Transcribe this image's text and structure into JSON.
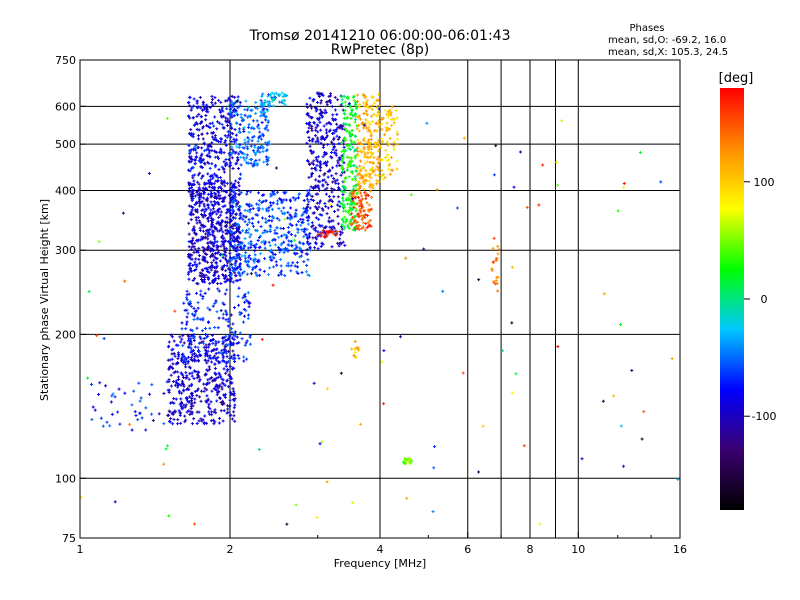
{
  "chart_data": {
    "type": "scatter",
    "title": "Tromsø 20141210 06:00:00-06:01:43",
    "subtitle": "RwPretec (8p)",
    "xlabel": "Frequency [MHz]",
    "ylabel": "Stationary phase Virtual Height [km]",
    "x_scale": "log",
    "y_scale": "log",
    "xlim": [
      1,
      16
    ],
    "ylim": [
      75,
      750
    ],
    "x_ticks": [
      1,
      2,
      4,
      6,
      8,
      10,
      16
    ],
    "x_tick_labels": [
      "1",
      "2",
      "4",
      "6",
      "8",
      "10",
      "16"
    ],
    "x_gridlines": [
      2,
      4,
      6,
      7,
      8,
      9,
      10
    ],
    "y_ticks": [
      75,
      100,
      200,
      300,
      400,
      500,
      600,
      750
    ],
    "y_tick_labels": [
      "75",
      "100",
      "200",
      "300",
      "400",
      "500",
      "600",
      "750"
    ],
    "y_gridlines": [
      100,
      200,
      300,
      400,
      500,
      600
    ],
    "grid": true,
    "phase_info": {
      "title": "Phases",
      "line1": "mean, sd,O: -69.2, 16.0",
      "line2": "mean, sd,X: 105.3, 24.5"
    },
    "colorbar": {
      "label": "[deg]",
      "range": [
        -180,
        180
      ],
      "ticks": [
        100,
        0,
        -100
      ],
      "tick_labels": [
        "100",
        "0",
        "-100"
      ],
      "colors": [
        "#000000",
        "#3a0070",
        "#0000ff",
        "#00c8ff",
        "#00ff00",
        "#ffff00",
        "#ff8c00",
        "#ff0000"
      ]
    },
    "clusters": [
      {
        "x": [
          1.5,
          2.05
        ],
        "y": [
          130,
          200
        ],
        "phase": -95,
        "density": 450
      },
      {
        "x": [
          1.6,
          2.2
        ],
        "y": [
          175,
          250
        ],
        "phase": -70,
        "density": 180
      },
      {
        "x": [
          1.65,
          2.1
        ],
        "y": [
          255,
          420
        ],
        "phase": -95,
        "density": 650
      },
      {
        "x": [
          1.65,
          2.1
        ],
        "y": [
          420,
          630
        ],
        "phase": -85,
        "density": 300
      },
      {
        "x": [
          2.0,
          2.9
        ],
        "y": [
          265,
          400
        ],
        "phase": -60,
        "density": 420
      },
      {
        "x": [
          2.0,
          2.4
        ],
        "y": [
          450,
          620
        ],
        "phase": -50,
        "density": 180
      },
      {
        "x": [
          2.3,
          2.6
        ],
        "y": [
          600,
          640
        ],
        "phase": -30,
        "density": 45
      },
      {
        "x": [
          2.85,
          3.4
        ],
        "y": [
          300,
          640
        ],
        "phase": -95,
        "density": 380
      },
      {
        "x": [
          3.35,
          3.6
        ],
        "y": [
          330,
          630
        ],
        "phase": 20,
        "density": 220
      },
      {
        "x": [
          3.6,
          4.0
        ],
        "y": [
          400,
          640
        ],
        "phase": 110,
        "density": 200
      },
      {
        "x": [
          3.5,
          3.85
        ],
        "y": [
          330,
          400
        ],
        "phase": 150,
        "density": 90
      },
      {
        "x": [
          4.0,
          4.35
        ],
        "y": [
          420,
          600
        ],
        "phase": 100,
        "density": 70
      },
      {
        "x": [
          3.0,
          3.3
        ],
        "y": [
          320,
          330
        ],
        "phase": 170,
        "density": 25
      },
      {
        "x": [
          1.05,
          1.5
        ],
        "y": [
          125,
          160
        ],
        "phase": -70,
        "density": 40
      },
      {
        "x": [
          4.45,
          4.62
        ],
        "y": [
          107,
          110
        ],
        "phase": 50,
        "density": 25
      },
      {
        "x": [
          6.7,
          6.95
        ],
        "y": [
          245,
          320
        ],
        "phase": 140,
        "density": 20
      },
      {
        "x": [
          3.5,
          3.65
        ],
        "y": [
          178,
          195
        ],
        "phase": 110,
        "density": 12
      }
    ],
    "scatter_noise": {
      "x": [
        1,
        16
      ],
      "y": [
        78,
        650
      ],
      "density": 110
    }
  }
}
